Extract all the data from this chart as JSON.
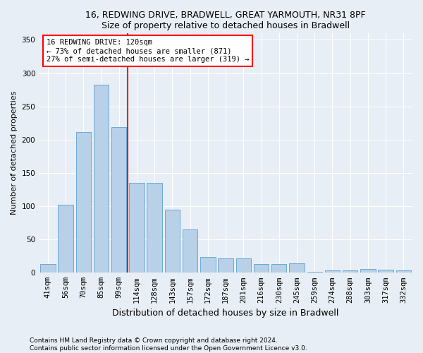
{
  "title1": "16, REDWING DRIVE, BRADWELL, GREAT YARMOUTH, NR31 8PF",
  "title2": "Size of property relative to detached houses in Bradwell",
  "xlabel": "Distribution of detached houses by size in Bradwell",
  "ylabel": "Number of detached properties",
  "footer1": "Contains HM Land Registry data © Crown copyright and database right 2024.",
  "footer2": "Contains public sector information licensed under the Open Government Licence v3.0.",
  "bar_color": "#b8d0e8",
  "bar_edge_color": "#6aaad4",
  "categories": [
    "41sqm",
    "56sqm",
    "70sqm",
    "85sqm",
    "99sqm",
    "114sqm",
    "128sqm",
    "143sqm",
    "157sqm",
    "172sqm",
    "187sqm",
    "201sqm",
    "216sqm",
    "230sqm",
    "245sqm",
    "259sqm",
    "274sqm",
    "288sqm",
    "303sqm",
    "317sqm",
    "332sqm"
  ],
  "values": [
    13,
    102,
    211,
    282,
    219,
    135,
    135,
    95,
    65,
    24,
    22,
    22,
    13,
    13,
    14,
    1,
    3,
    3,
    6,
    5,
    4
  ],
  "red_line_bar_index": 5,
  "annotation_line1": "16 REDWING DRIVE: 120sqm",
  "annotation_line2": "← 73% of detached houses are smaller (871)",
  "annotation_line3": "27% of semi-detached houses are larger (319) →",
  "ylim": [
    0,
    360
  ],
  "yticks": [
    0,
    50,
    100,
    150,
    200,
    250,
    300,
    350
  ],
  "background_color": "#e8eef5",
  "plot_background": "#e8eef5",
  "grid_color": "white",
  "title_fontsize": 9,
  "ylabel_fontsize": 8,
  "xlabel_fontsize": 9,
  "tick_fontsize": 7.5,
  "annotation_fontsize": 7.5,
  "footer_fontsize": 6.5
}
